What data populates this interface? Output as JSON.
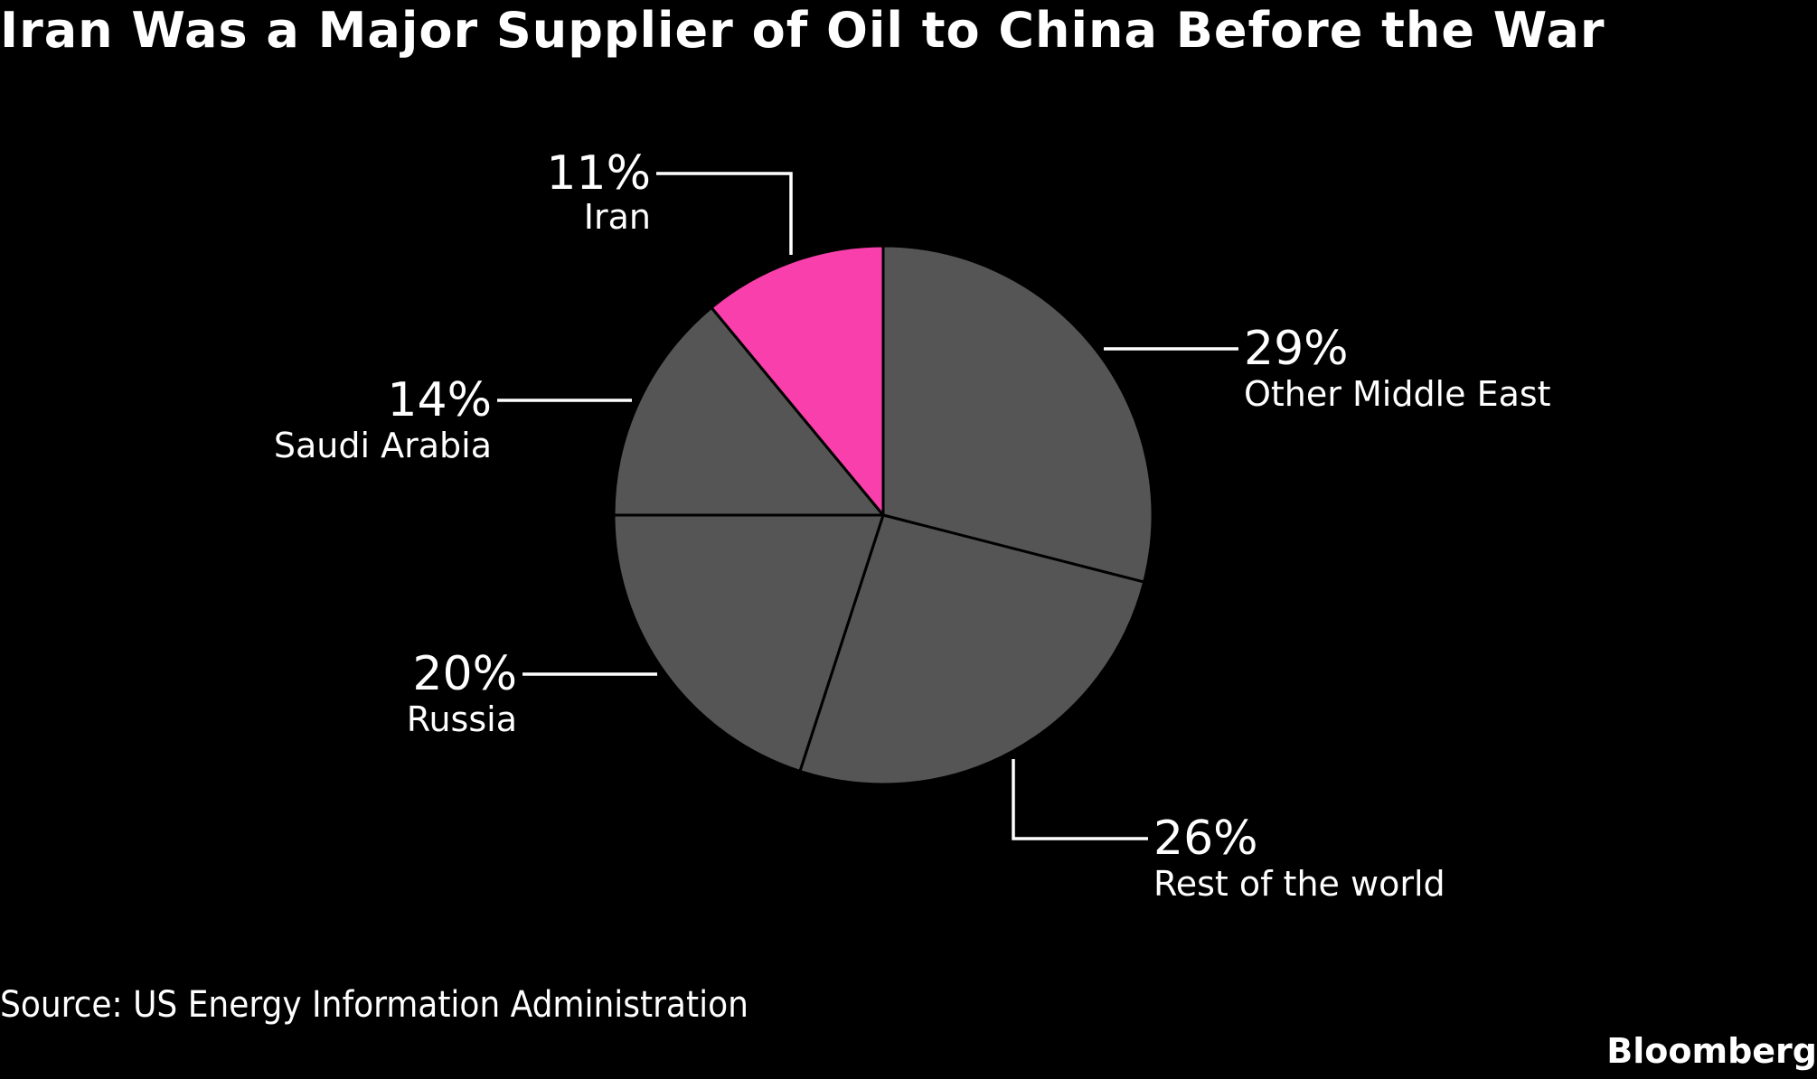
{
  "header": {
    "title": "Iran Was a Major Supplier of Oil to China Before the War"
  },
  "footer": {
    "source": "Source: US Energy Information Administration",
    "brand": "Bloomberg"
  },
  "colors": {
    "background": "#000000",
    "slice_default": "#555555",
    "slice_highlight": "#f93fac",
    "slice_border": "#000000",
    "text": "#ffffff",
    "leader": "#ffffff"
  },
  "chart_data": {
    "type": "pie",
    "title": "Iran Was a Major Supplier of Oil to China Before the War",
    "slices": [
      {
        "name": "Other Middle East",
        "value": 29,
        "label": "29%",
        "highlight": false
      },
      {
        "name": "Rest of the world",
        "value": 26,
        "label": "26%",
        "highlight": false
      },
      {
        "name": "Russia",
        "value": 20,
        "label": "20%",
        "highlight": false
      },
      {
        "name": "Saudi Arabia",
        "value": 14,
        "label": "14%",
        "highlight": false
      },
      {
        "name": "Iran",
        "value": 11,
        "label": "11%",
        "highlight": true
      }
    ]
  }
}
